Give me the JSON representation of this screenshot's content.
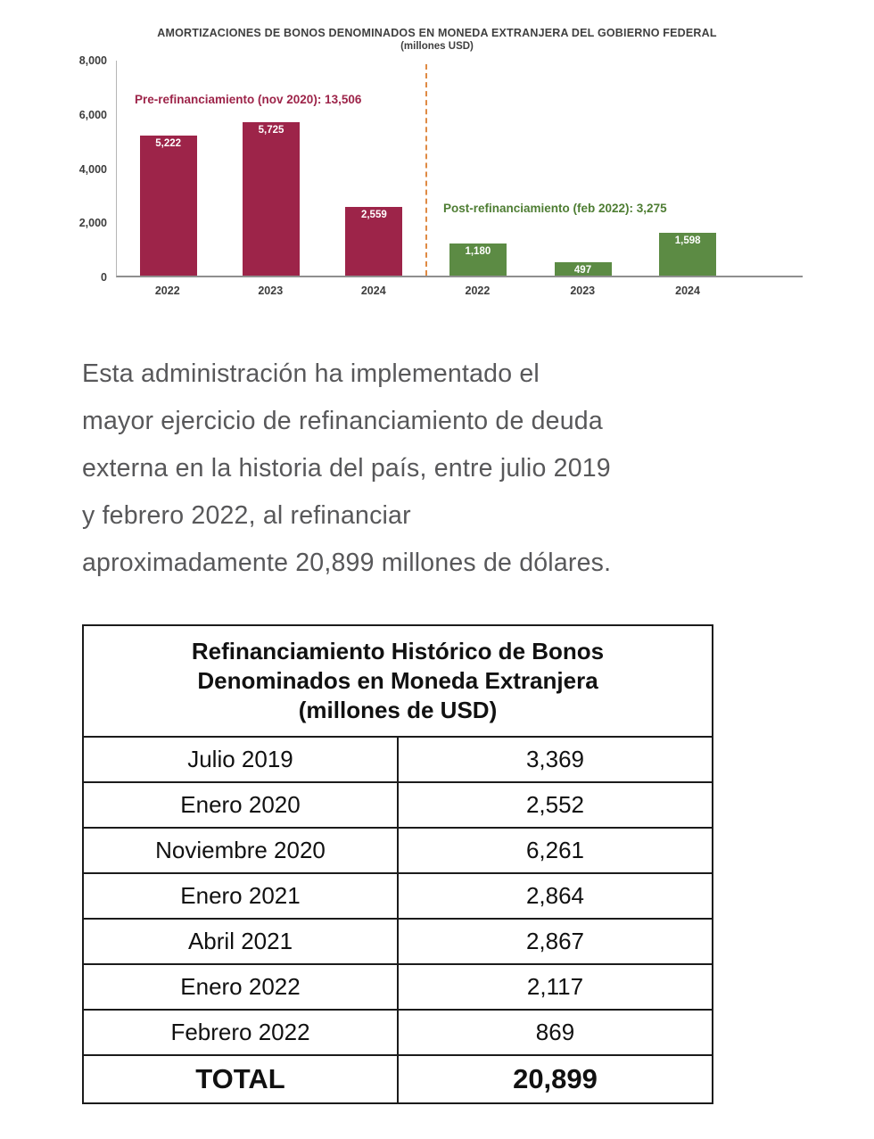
{
  "chart": {
    "title": "AMORTIZACIONES DE BONOS DENOMINADOS EN MONEDA EXTRANJERA DEL GOBIERNO FEDERAL",
    "subtitle": "(millones USD)",
    "y_ticks": [
      "8,000",
      "6,000",
      "4,000",
      "2,000",
      "0"
    ],
    "pre_label": "Pre-refinanciamiento (nov 2020): 13,506",
    "post_label": "Post-refinanciamiento (feb 2022): 3,275",
    "colors": {
      "pre": "#9d2449",
      "post": "#5c8b44",
      "divider": "#df8a44"
    }
  },
  "chart_data": {
    "type": "bar",
    "title": "AMORTIZACIONES DE BONOS DENOMINADOS EN MONEDA EXTRANJERA DEL GOBIERNO FEDERAL (millones USD)",
    "xlabel": "",
    "ylabel": "millones USD",
    "ylim": [
      0,
      8000
    ],
    "grid": false,
    "categories": [
      "2022",
      "2023",
      "2024"
    ],
    "series": [
      {
        "name": "Pre-refinanciamiento (nov 2020)",
        "total": 13506,
        "values": [
          5222,
          5725,
          2559
        ],
        "labels": [
          "5,222",
          "5,725",
          "2,559"
        ],
        "color": "#9d2449"
      },
      {
        "name": "Post-refinanciamiento (feb 2022)",
        "total": 3275,
        "values": [
          1180,
          497,
          1598
        ],
        "labels": [
          "1,180",
          "497",
          "1,598"
        ],
        "color": "#5c8b44"
      }
    ]
  },
  "paragraph": {
    "lines": [
      "Esta administración ha implementado el",
      "mayor ejercicio de refinanciamiento de deuda",
      "externa en la historia del país, entre julio 2019",
      "y febrero 2022, al refinanciar",
      "aproximadamente 20,899 millones de dólares."
    ]
  },
  "table": {
    "title_lines": [
      "Refinanciamiento Histórico de Bonos",
      "Denominados en Moneda Extranjera",
      "(millones de USD)"
    ],
    "rows": [
      [
        "Julio 2019",
        "3,369"
      ],
      [
        "Enero 2020",
        "2,552"
      ],
      [
        "Noviembre 2020",
        "6,261"
      ],
      [
        "Enero 2021",
        "2,864"
      ],
      [
        "Abril 2021",
        "2,867"
      ],
      [
        "Enero 2022",
        "2,117"
      ],
      [
        "Febrero 2022",
        "869"
      ]
    ],
    "total_label": "TOTAL",
    "total_value": "20,899"
  }
}
